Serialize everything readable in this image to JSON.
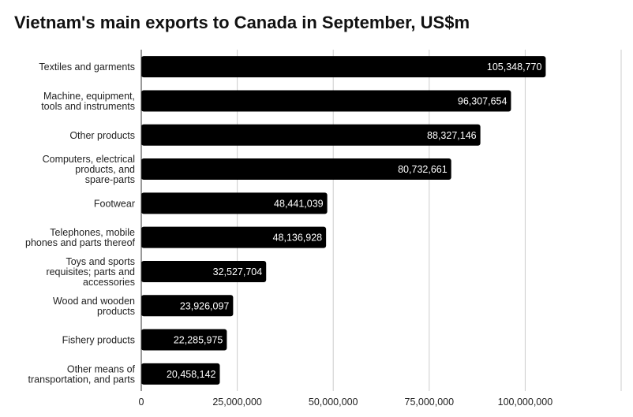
{
  "chart_data": {
    "type": "bar",
    "orientation": "horizontal",
    "title": "Vietnam's main exports to Canada in September, US$m",
    "categories": [
      "Textiles and garments",
      "Machine, equipment, tools and instruments",
      "Other products",
      "Computers, electrical products, and spare-parts",
      "Footwear",
      "Telephones, mobile phones and parts thereof",
      "Toys and sports requisites; parts and accessories",
      "Wood and wooden products",
      "Fishery products",
      "Other means of transportation, and parts"
    ],
    "category_lines": [
      [
        "Textiles and garments"
      ],
      [
        "Machine, equipment,",
        "tools and instruments"
      ],
      [
        "Other products"
      ],
      [
        "Computers, electrical",
        "products, and",
        "spare-parts"
      ],
      [
        "Footwear"
      ],
      [
        "Telephones, mobile",
        "phones and parts thereof"
      ],
      [
        "Toys and sports",
        "requisites; parts and",
        "accessories"
      ],
      [
        "Wood and wooden",
        "products"
      ],
      [
        "Fishery products"
      ],
      [
        "Other means of",
        "transportation, and parts"
      ]
    ],
    "values": [
      105348770,
      96307654,
      88327146,
      80732661,
      48441039,
      48136928,
      32527704,
      23926097,
      22285975,
      20458142
    ],
    "value_labels": [
      "105,348,770",
      "96,307,654",
      "88,327,146",
      "80,732,661",
      "48,441,039",
      "48,136,928",
      "32,527,704",
      "23,926,097",
      "22,285,975",
      "20,458,142"
    ],
    "xticks": [
      0,
      25000000,
      50000000,
      75000000,
      100000000
    ],
    "xtick_labels": [
      "0",
      "25,000,000",
      "50,000,000",
      "75,000,000",
      "100,000,000"
    ],
    "xlim": [
      0,
      125000000
    ],
    "xlabel": "",
    "ylabel": "",
    "grid": true,
    "bar_color": "#000000",
    "grid_color": "#cccccc"
  }
}
